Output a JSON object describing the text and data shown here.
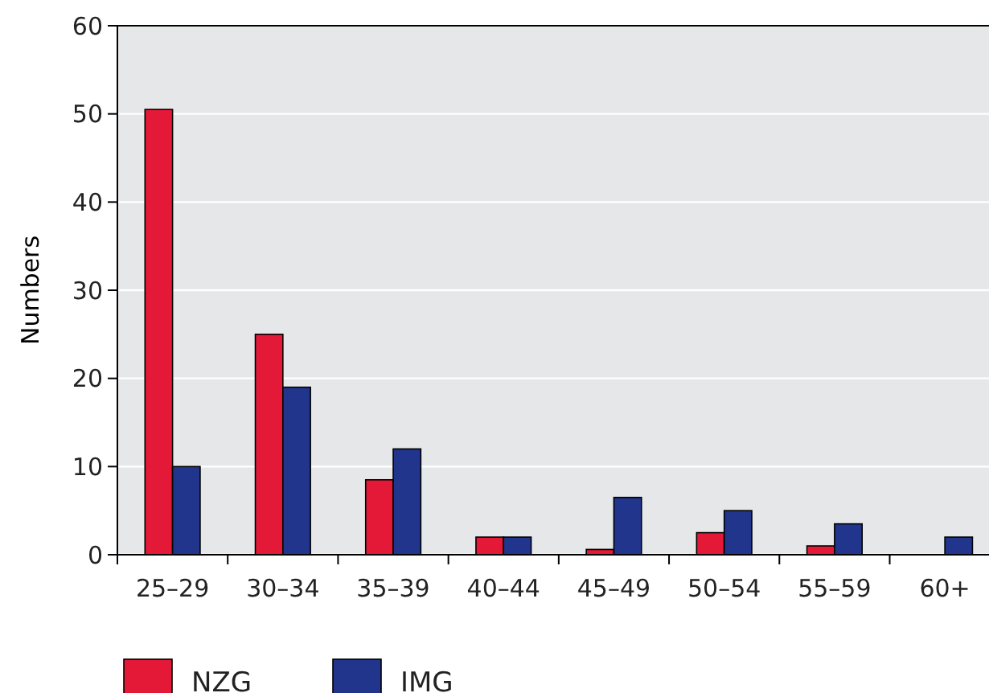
{
  "chart_data": {
    "type": "bar",
    "ylabel": "Numbers",
    "categories": [
      "25–29",
      "30–34",
      "35–39",
      "40–44",
      "45–49",
      "50–54",
      "55–59",
      "60+"
    ],
    "series": [
      {
        "name": "NZG",
        "color": "#e31937",
        "values": [
          50.5,
          25,
          8.5,
          2,
          0.6,
          2.5,
          1,
          0
        ]
      },
      {
        "name": "IMG",
        "color": "#21358c",
        "values": [
          10,
          19,
          12,
          2,
          6.5,
          5,
          3.5,
          2
        ]
      }
    ],
    "ylim": [
      0,
      60
    ],
    "yticks": [
      0,
      10,
      20,
      30,
      40,
      50,
      60
    ],
    "grid": "y",
    "legend": "bottom left"
  }
}
